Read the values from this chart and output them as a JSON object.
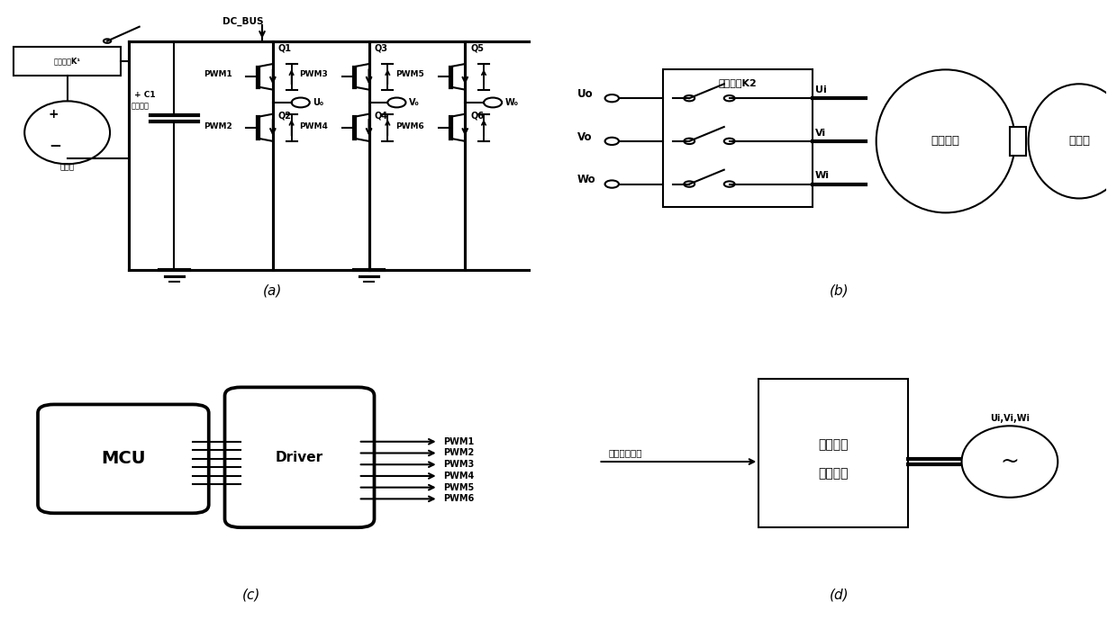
{
  "bg_color": "#ffffff",
  "lc": "#000000",
  "lw": 1.5,
  "fig_width": 12.4,
  "fig_height": 6.89,
  "label_a": "(a)",
  "label_b": "(b)",
  "label_c": "(c)",
  "label_d": "(d)",
  "text_dc_bus": "DC_BUS",
  "text_k1": "电子开关K¹",
  "text_battery": "蓄电池",
  "text_c1": "+ C1",
  "text_filter": "滤波电容",
  "text_q1": "Q1",
  "text_q2": "Q2",
  "text_q3": "Q3",
  "text_q4": "Q4",
  "text_q5": "Q5",
  "text_q6": "Q6",
  "text_pwm1": "PWM1",
  "text_pwm2": "PWM2",
  "text_pwm3": "PWM3",
  "text_pwm4": "PWM4",
  "text_pwm5": "PWM5",
  "text_pwm6": "PWM6",
  "text_uo": "U₀",
  "text_vo": "V₀",
  "text_wo": "W₀",
  "text_k2": "电子开关K2",
  "text_uo_in": "Uo",
  "text_vo_in": "Vo",
  "text_wo_in": "Wo",
  "text_ui": "Ui",
  "text_vi": "Vi",
  "text_wi": "Wi",
  "text_starter": "启动电机",
  "text_engine": "发动机",
  "text_mcu": "MCU",
  "text_driver": "Driver",
  "text_pwm_list": [
    "PWM1",
    "PWM2",
    "PWM3",
    "PWM4",
    "PWM5",
    "PWM6"
  ],
  "text_interlock_1": "启动点火",
  "text_interlock_2": "互锁装置",
  "text_start_signal": "启动状态信号",
  "text_ac_label": "Ui,Vi,Wi"
}
